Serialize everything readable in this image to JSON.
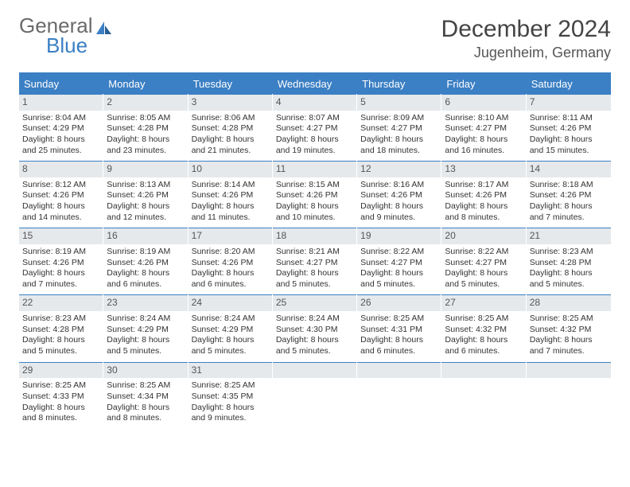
{
  "brand": {
    "part1": "General",
    "part2": "Blue"
  },
  "title": "December 2024",
  "location": "Jugenheim, Germany",
  "colors": {
    "accent": "#3b7fc4",
    "daynum_bg": "#e6e9ec",
    "text": "#333333",
    "background": "#ffffff"
  },
  "layout": {
    "columns": 7,
    "rows": 5,
    "font_family": "Arial",
    "header_fontsize": 13,
    "cell_fontsize": 10.5,
    "title_fontsize": 30,
    "location_fontsize": 18
  },
  "weekdays": [
    "Sunday",
    "Monday",
    "Tuesday",
    "Wednesday",
    "Thursday",
    "Friday",
    "Saturday"
  ],
  "days": [
    {
      "n": 1,
      "sr": "8:04 AM",
      "ss": "4:29 PM",
      "dl": "8 hours and 25 minutes."
    },
    {
      "n": 2,
      "sr": "8:05 AM",
      "ss": "4:28 PM",
      "dl": "8 hours and 23 minutes."
    },
    {
      "n": 3,
      "sr": "8:06 AM",
      "ss": "4:28 PM",
      "dl": "8 hours and 21 minutes."
    },
    {
      "n": 4,
      "sr": "8:07 AM",
      "ss": "4:27 PM",
      "dl": "8 hours and 19 minutes."
    },
    {
      "n": 5,
      "sr": "8:09 AM",
      "ss": "4:27 PM",
      "dl": "8 hours and 18 minutes."
    },
    {
      "n": 6,
      "sr": "8:10 AM",
      "ss": "4:27 PM",
      "dl": "8 hours and 16 minutes."
    },
    {
      "n": 7,
      "sr": "8:11 AM",
      "ss": "4:26 PM",
      "dl": "8 hours and 15 minutes."
    },
    {
      "n": 8,
      "sr": "8:12 AM",
      "ss": "4:26 PM",
      "dl": "8 hours and 14 minutes."
    },
    {
      "n": 9,
      "sr": "8:13 AM",
      "ss": "4:26 PM",
      "dl": "8 hours and 12 minutes."
    },
    {
      "n": 10,
      "sr": "8:14 AM",
      "ss": "4:26 PM",
      "dl": "8 hours and 11 minutes."
    },
    {
      "n": 11,
      "sr": "8:15 AM",
      "ss": "4:26 PM",
      "dl": "8 hours and 10 minutes."
    },
    {
      "n": 12,
      "sr": "8:16 AM",
      "ss": "4:26 PM",
      "dl": "8 hours and 9 minutes."
    },
    {
      "n": 13,
      "sr": "8:17 AM",
      "ss": "4:26 PM",
      "dl": "8 hours and 8 minutes."
    },
    {
      "n": 14,
      "sr": "8:18 AM",
      "ss": "4:26 PM",
      "dl": "8 hours and 7 minutes."
    },
    {
      "n": 15,
      "sr": "8:19 AM",
      "ss": "4:26 PM",
      "dl": "8 hours and 7 minutes."
    },
    {
      "n": 16,
      "sr": "8:19 AM",
      "ss": "4:26 PM",
      "dl": "8 hours and 6 minutes."
    },
    {
      "n": 17,
      "sr": "8:20 AM",
      "ss": "4:26 PM",
      "dl": "8 hours and 6 minutes."
    },
    {
      "n": 18,
      "sr": "8:21 AM",
      "ss": "4:27 PM",
      "dl": "8 hours and 5 minutes."
    },
    {
      "n": 19,
      "sr": "8:22 AM",
      "ss": "4:27 PM",
      "dl": "8 hours and 5 minutes."
    },
    {
      "n": 20,
      "sr": "8:22 AM",
      "ss": "4:27 PM",
      "dl": "8 hours and 5 minutes."
    },
    {
      "n": 21,
      "sr": "8:23 AM",
      "ss": "4:28 PM",
      "dl": "8 hours and 5 minutes."
    },
    {
      "n": 22,
      "sr": "8:23 AM",
      "ss": "4:28 PM",
      "dl": "8 hours and 5 minutes."
    },
    {
      "n": 23,
      "sr": "8:24 AM",
      "ss": "4:29 PM",
      "dl": "8 hours and 5 minutes."
    },
    {
      "n": 24,
      "sr": "8:24 AM",
      "ss": "4:29 PM",
      "dl": "8 hours and 5 minutes."
    },
    {
      "n": 25,
      "sr": "8:24 AM",
      "ss": "4:30 PM",
      "dl": "8 hours and 5 minutes."
    },
    {
      "n": 26,
      "sr": "8:25 AM",
      "ss": "4:31 PM",
      "dl": "8 hours and 6 minutes."
    },
    {
      "n": 27,
      "sr": "8:25 AM",
      "ss": "4:32 PM",
      "dl": "8 hours and 6 minutes."
    },
    {
      "n": 28,
      "sr": "8:25 AM",
      "ss": "4:32 PM",
      "dl": "8 hours and 7 minutes."
    },
    {
      "n": 29,
      "sr": "8:25 AM",
      "ss": "4:33 PM",
      "dl": "8 hours and 8 minutes."
    },
    {
      "n": 30,
      "sr": "8:25 AM",
      "ss": "4:34 PM",
      "dl": "8 hours and 8 minutes."
    },
    {
      "n": 31,
      "sr": "8:25 AM",
      "ss": "4:35 PM",
      "dl": "8 hours and 9 minutes."
    }
  ],
  "labels": {
    "sunrise": "Sunrise:",
    "sunset": "Sunset:",
    "daylight": "Daylight:"
  }
}
